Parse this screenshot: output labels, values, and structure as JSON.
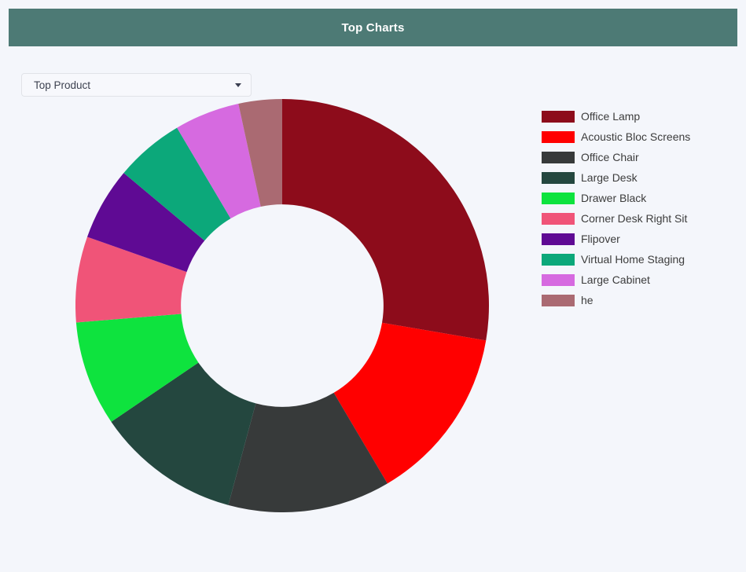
{
  "header": {
    "title": "Top Charts"
  },
  "filter": {
    "selected": "Top Product"
  },
  "colors": {
    "header_bg": "#4d7a75",
    "page_bg": "#f4f6fb",
    "legend_text": "#3c3c3c"
  },
  "chart_data": {
    "type": "pie",
    "subtype": "donut",
    "title": "Top Product",
    "legend_position": "right",
    "direction": "clockwise",
    "start_angle_deg": 0,
    "inner_radius_ratio": 0.49,
    "unit": "percent",
    "labels": [
      "Office Lamp",
      "Acoustic Bloc Screens",
      "Office Chair",
      "Large Desk",
      "Drawer Black",
      "Corner Desk Right Sit",
      "Flipover",
      "Virtual Home Staging",
      "Large Cabinet",
      "he"
    ],
    "values": [
      27.7,
      13.8,
      12.7,
      11.3,
      8.2,
      6.7,
      5.7,
      5.4,
      5.1,
      3.4
    ],
    "colors": [
      "#8d0c1b",
      "#ff0000",
      "#373a3a",
      "#24473f",
      "#0ee33e",
      "#f05478",
      "#5f0a94",
      "#0ca87a",
      "#d66ae0",
      "#aa6a72"
    ]
  }
}
